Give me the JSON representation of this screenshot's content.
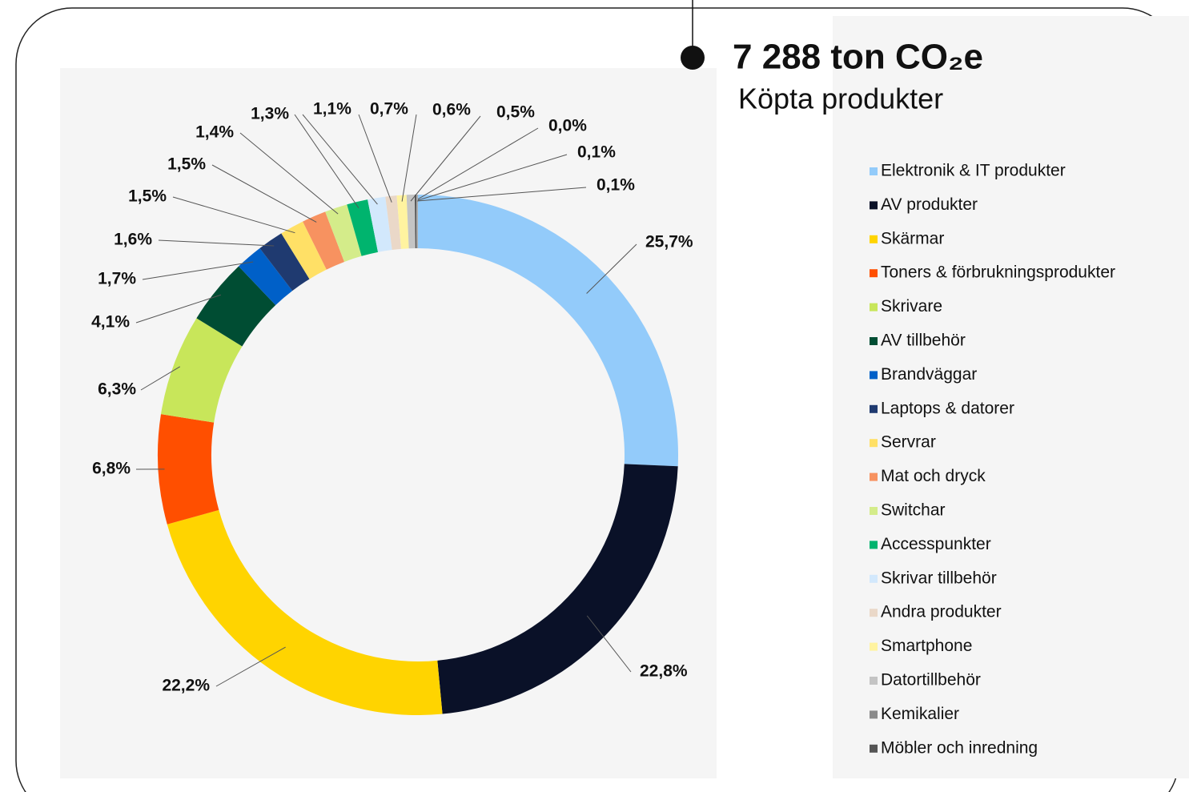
{
  "chart_data": {
    "type": "donut",
    "title": "7 288 ton CO₂e",
    "subtitle": "Köpta produkter",
    "categories": [
      "Elektronik & IT produkter",
      "AV produkter",
      "Skärmar",
      "Toners & förbrukningsprodukter",
      "Skrivare",
      "AV tillbehör",
      "Brandväggar",
      "Laptops & datorer",
      "Servrar",
      "Mat och dryck",
      "Switchar",
      "Accesspunkter",
      "Skrivar tillbehör",
      "Andra produkter",
      "Smartphone",
      "Datortillbehör",
      "Kemikalier",
      "Möbler och inredning",
      null
    ],
    "values": [
      25.7,
      22.8,
      22.2,
      6.8,
      6.3,
      4.1,
      1.7,
      1.6,
      1.5,
      1.5,
      1.4,
      1.3,
      1.1,
      0.7,
      0.6,
      0.5,
      0.0,
      0.1,
      0.1
    ],
    "value_labels": [
      "25,7%",
      "22,8%",
      "22,2%",
      "6,8%",
      "6,3%",
      "4,1%",
      "1,7%",
      "1,6%",
      "1,5%",
      "1,5%",
      "1,4%",
      "1,3%",
      "1,1%",
      "0,7%",
      "0,6%",
      "0,5%",
      "0,0%",
      "0,1%",
      "0,1%"
    ],
    "colors": [
      "#93cbfa",
      "#0a1128",
      "#ffd400",
      "#ff4f00",
      "#c8e65a",
      "#004d33",
      "#0060c8",
      "#1f3a70",
      "#ffe066",
      "#f79260",
      "#d4ec8a",
      "#00b46e",
      "#d2e8fc",
      "#ead8c8",
      "#fff3a0",
      "#c4c4c4",
      "#8a8a8a",
      "#555555",
      "#aaaaaa"
    ],
    "legend": "right"
  }
}
